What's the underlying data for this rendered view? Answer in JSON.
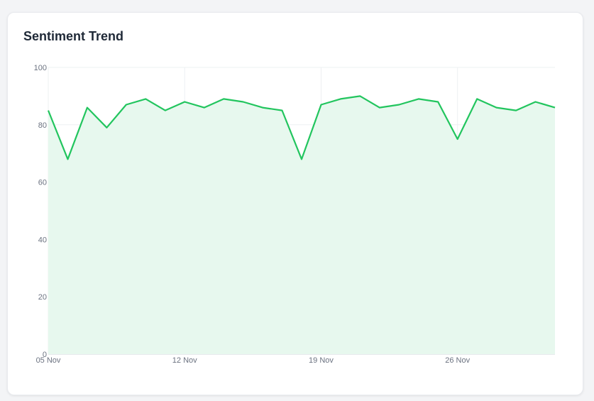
{
  "card": {
    "title": "Sentiment Trend"
  },
  "colors": {
    "line": "#22c55e",
    "fill": "#e7f8ee",
    "grid": "#e5e7eb"
  },
  "chart_data": {
    "type": "area",
    "title": "Sentiment Trend",
    "xlabel": "",
    "ylabel": "",
    "ylim": [
      0,
      100
    ],
    "yticks": [
      0,
      20,
      40,
      60,
      80,
      100
    ],
    "xtick_labels": [
      "05 Nov",
      "12 Nov",
      "19 Nov",
      "26 Nov"
    ],
    "grid": true,
    "legend": null,
    "x": [
      "05 Nov",
      "06 Nov",
      "07 Nov",
      "08 Nov",
      "09 Nov",
      "10 Nov",
      "11 Nov",
      "12 Nov",
      "13 Nov",
      "14 Nov",
      "15 Nov",
      "16 Nov",
      "17 Nov",
      "18 Nov",
      "19 Nov",
      "20 Nov",
      "21 Nov",
      "22 Nov",
      "23 Nov",
      "24 Nov",
      "25 Nov",
      "26 Nov",
      "27 Nov",
      "28 Nov",
      "29 Nov",
      "30 Nov",
      "01 Dec"
    ],
    "series": [
      {
        "name": "Sentiment",
        "values": [
          85,
          68,
          86,
          79,
          87,
          89,
          85,
          88,
          86,
          89,
          88,
          86,
          85,
          68,
          87,
          89,
          90,
          86,
          87,
          89,
          88,
          75,
          89,
          86,
          85,
          88,
          86
        ]
      }
    ]
  }
}
